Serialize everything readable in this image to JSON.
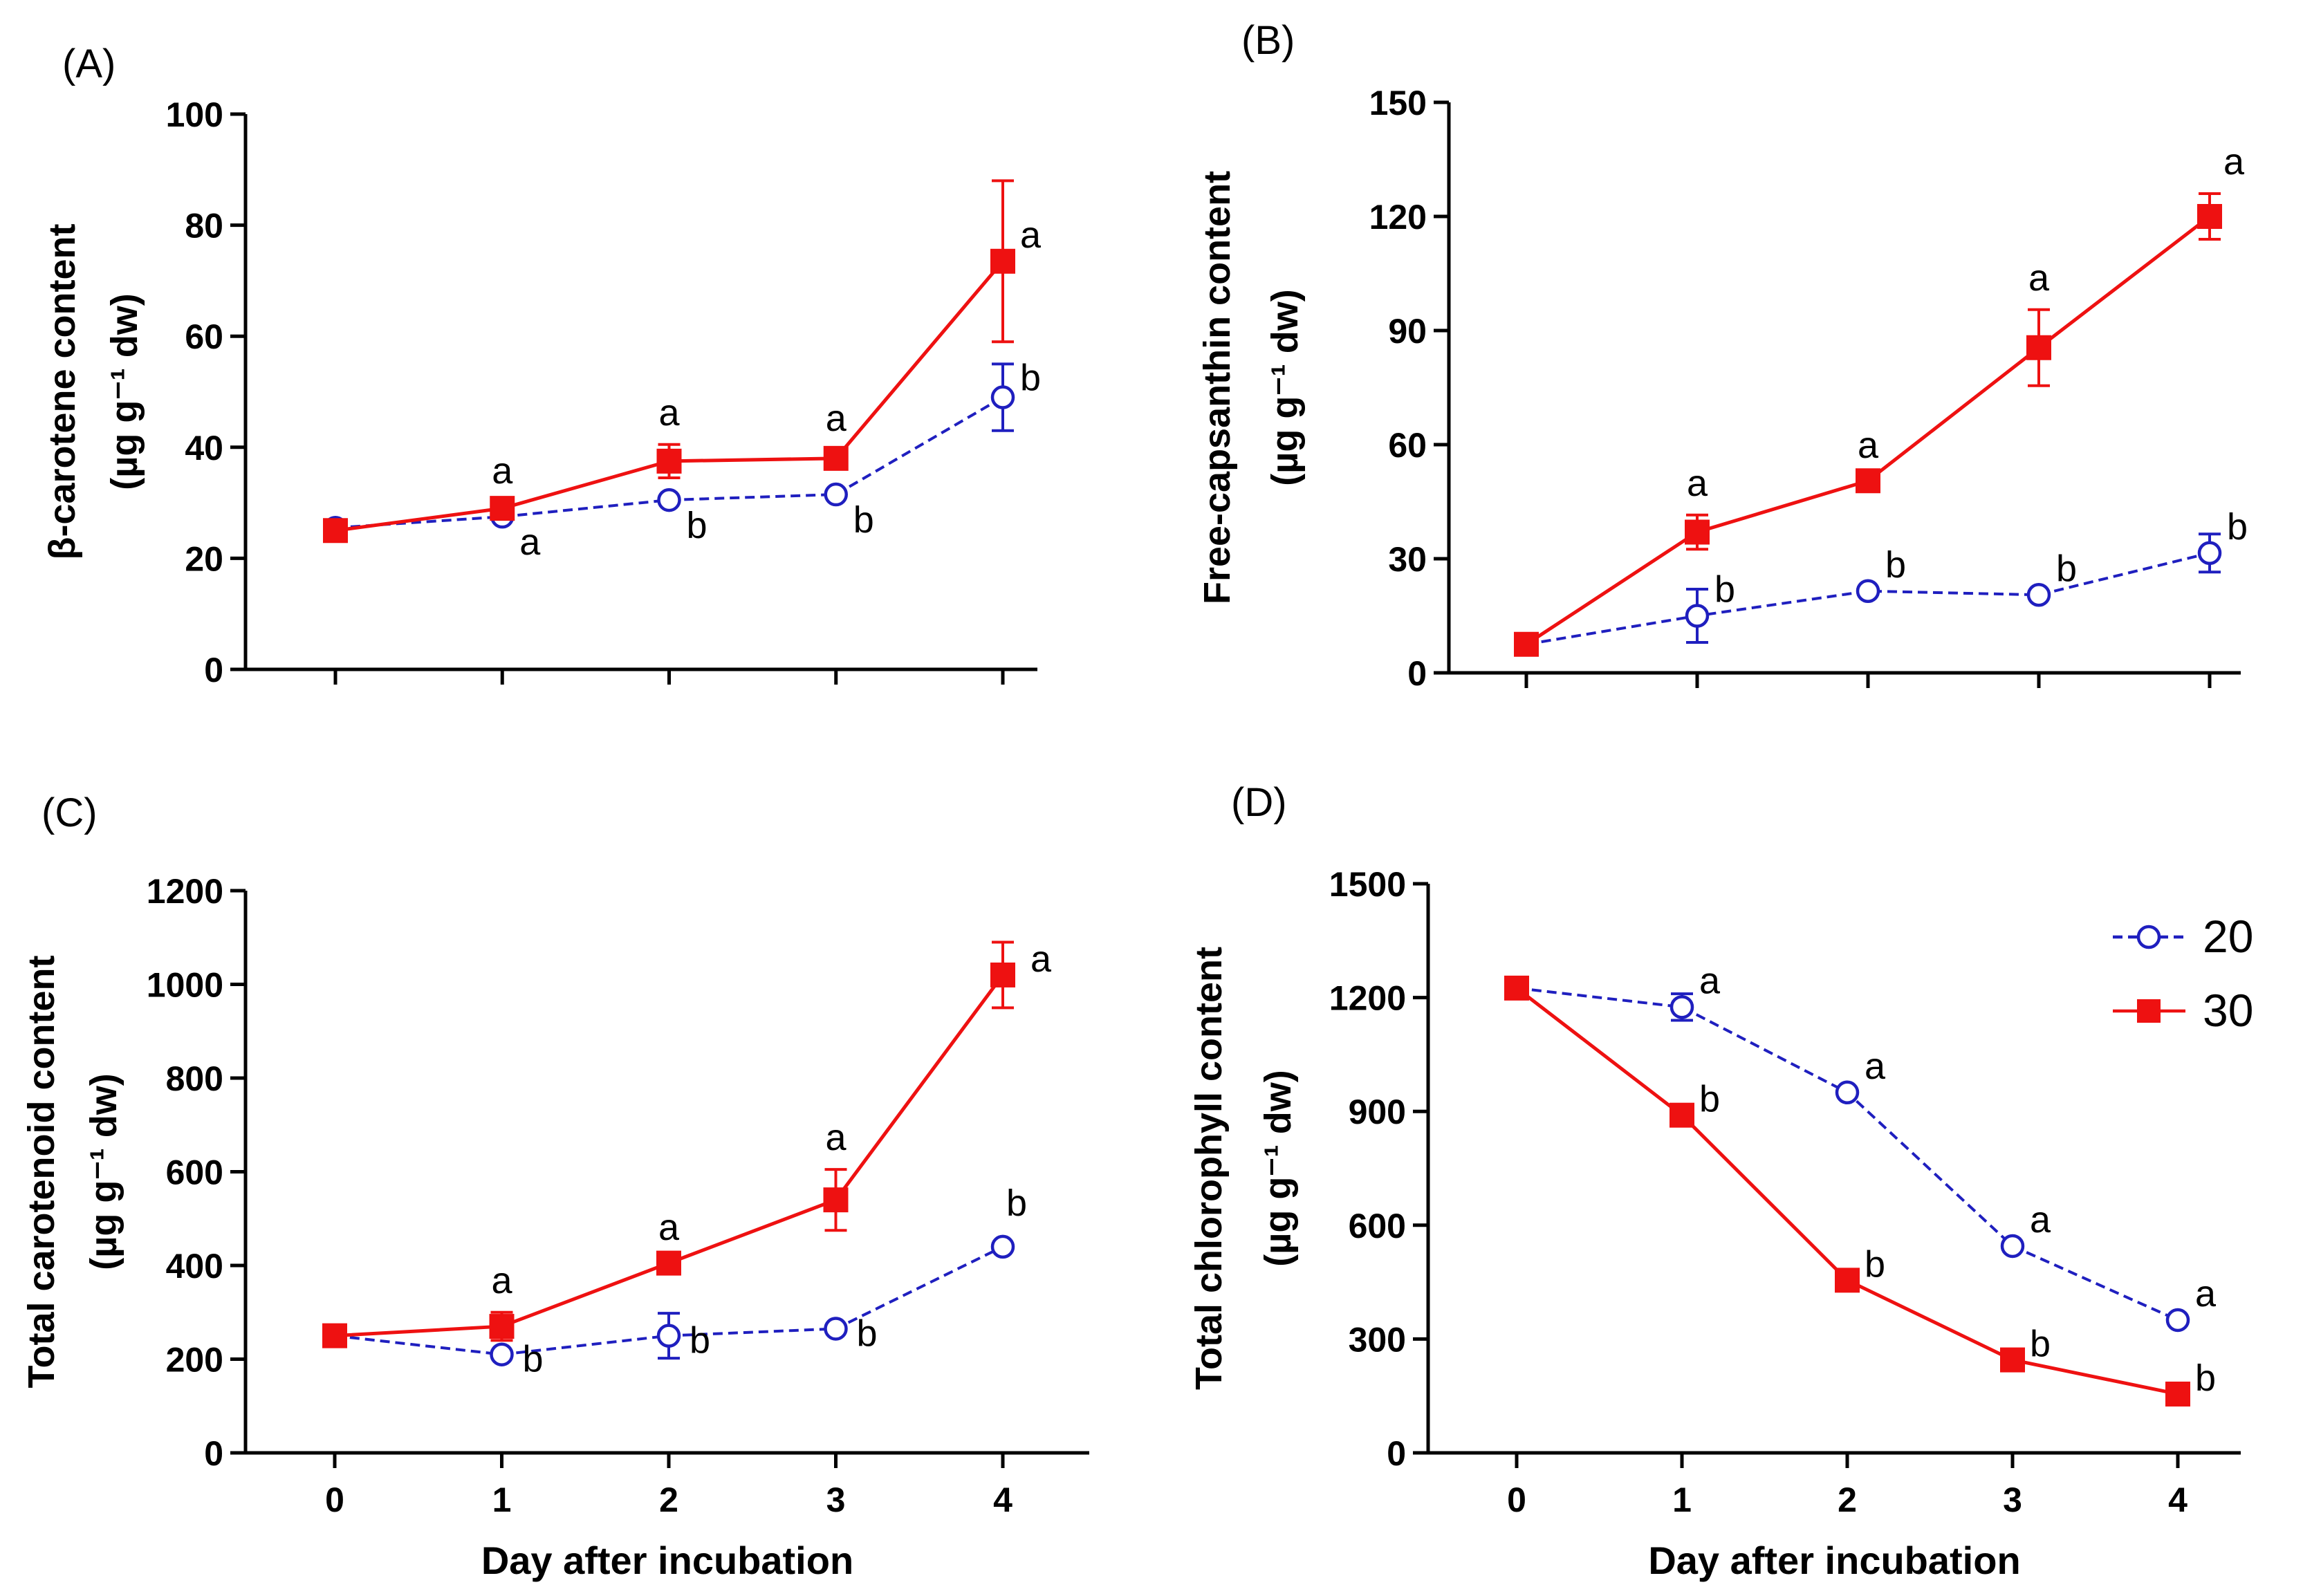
{
  "colors": {
    "series_20": "#1f1fbf",
    "series_30": "#ee1111",
    "axis": "#000000"
  },
  "legend": {
    "position": "top-right of panel D",
    "entries": [
      {
        "label": "20",
        "marker": "open-circle",
        "style": "dashed"
      },
      {
        "label": "30",
        "marker": "filled-square",
        "style": "solid"
      }
    ]
  },
  "chart_data": [
    {
      "panel": "(A)",
      "type": "line",
      "x": [
        0,
        1,
        2,
        3,
        4
      ],
      "xticks": [
        "",
        "",
        "",
        "",
        ""
      ],
      "xlabel": "",
      "ylabel_line1": "β-carotene content",
      "ylabel_line2": "(µg g⁻¹ dw)",
      "yticks": [
        "0",
        "20",
        "40",
        "60",
        "80",
        "100"
      ],
      "ylim": [
        0,
        100
      ],
      "series": [
        {
          "name": "20",
          "values": [
            25.5,
            27.5,
            30.5,
            31.5,
            49
          ],
          "err": [
            1,
            1,
            1,
            1,
            6
          ],
          "letters": [
            "",
            "a",
            "b",
            "b",
            "b"
          ]
        },
        {
          "name": "30",
          "values": [
            25,
            29,
            37.5,
            38,
            73.5
          ],
          "err": [
            1,
            1,
            3,
            1.5,
            14.5
          ],
          "letters": [
            "",
            "a",
            "a",
            "a",
            "a"
          ]
        }
      ]
    },
    {
      "panel": "(B)",
      "type": "line",
      "x": [
        0,
        1,
        2,
        3,
        4
      ],
      "xticks": [
        "",
        "",
        "",
        "",
        ""
      ],
      "xlabel": "",
      "ylabel_line1": "Free-capsanthin content",
      "ylabel_line2": "(µg g⁻¹ dw)",
      "yticks": [
        "0",
        "30",
        "60",
        "90",
        "120",
        "150"
      ],
      "ylim": [
        0,
        150
      ],
      "series": [
        {
          "name": "20",
          "values": [
            7.5,
            15,
            21.5,
            20.5,
            31.5
          ],
          "err": [
            1,
            7,
            1,
            1,
            5
          ],
          "letters": [
            "",
            "b",
            "b",
            "b",
            "b"
          ]
        },
        {
          "name": "30",
          "values": [
            7.5,
            37,
            50.5,
            85.5,
            120
          ],
          "err": [
            1,
            4.5,
            1,
            10,
            6
          ],
          "letters": [
            "",
            "a",
            "a",
            "a",
            "a"
          ]
        }
      ]
    },
    {
      "panel": "(C)",
      "type": "line",
      "x": [
        0,
        1,
        2,
        3,
        4
      ],
      "xticks": [
        "0",
        "1",
        "2",
        "3",
        "4"
      ],
      "xlabel": "Day after incubation",
      "ylabel_line1": "Total carotenoid content",
      "ylabel_line2": "(µg g⁻¹ dw)",
      "yticks": [
        "0",
        "200",
        "400",
        "600",
        "800",
        "1000",
        "1200"
      ],
      "ylim": [
        0,
        1200
      ],
      "series": [
        {
          "name": "20",
          "values": [
            250,
            210,
            250,
            265,
            440
          ],
          "err": [
            8,
            8,
            48,
            8,
            8
          ],
          "letters": [
            "",
            "b",
            "b",
            "b",
            "b"
          ]
        },
        {
          "name": "30",
          "values": [
            250,
            270,
            405,
            540,
            1020
          ],
          "err": [
            8,
            30,
            8,
            65,
            70
          ],
          "letters": [
            "",
            "a",
            "a",
            "a",
            "a"
          ]
        }
      ]
    },
    {
      "panel": "(D)",
      "type": "line",
      "x": [
        0,
        1,
        2,
        3,
        4
      ],
      "xticks": [
        "0",
        "1",
        "2",
        "3",
        "4"
      ],
      "xlabel": "Day after incubation",
      "ylabel_line1": "Total chlorophyll content",
      "ylabel_line2": "(µg g⁻¹ dw)",
      "yticks": [
        "0",
        "300",
        "600",
        "900",
        "1200",
        "1500"
      ],
      "ylim": [
        0,
        1500
      ],
      "series": [
        {
          "name": "20",
          "values": [
            1225,
            1175,
            950,
            545,
            350
          ],
          "err": [
            15,
            35,
            10,
            10,
            10
          ],
          "letters": [
            "",
            "a",
            "a",
            "a",
            "a"
          ]
        },
        {
          "name": "30",
          "values": [
            1225,
            890,
            455,
            245,
            155
          ],
          "err": [
            15,
            10,
            10,
            10,
            10
          ],
          "letters": [
            "",
            "b",
            "b",
            "b",
            "b"
          ]
        }
      ]
    }
  ]
}
